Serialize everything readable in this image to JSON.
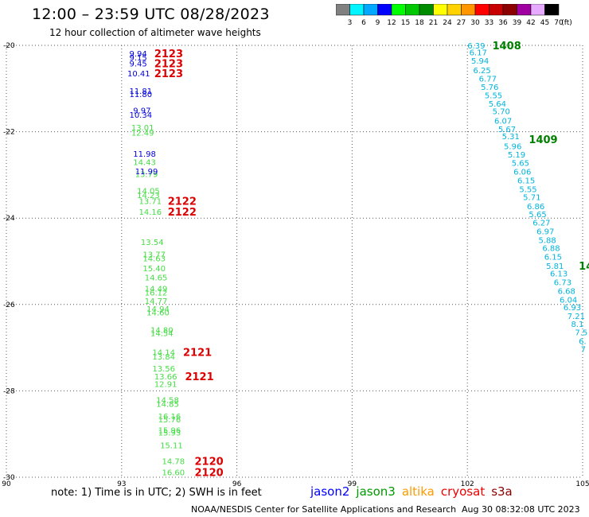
{
  "title": "12:00 – 23:59 UTC 08/28/2023",
  "subtitle": "12 hour collection of altimeter wave heights",
  "colorbar": {
    "unit": "(ft)",
    "bins": [
      {
        "label": "3",
        "color": "#808080"
      },
      {
        "label": "6",
        "color": "#00f5ff"
      },
      {
        "label": "9",
        "color": "#00a8ff"
      },
      {
        "label": "12",
        "color": "#0000ff"
      },
      {
        "label": "15",
        "color": "#00ff00"
      },
      {
        "label": "18",
        "color": "#00c800"
      },
      {
        "label": "21",
        "color": "#008c00"
      },
      {
        "label": "24",
        "color": "#ffff00"
      },
      {
        "label": "27",
        "color": "#ffd200"
      },
      {
        "label": "30",
        "color": "#ff9600"
      },
      {
        "label": "33",
        "color": "#ff0000"
      },
      {
        "label": "36",
        "color": "#c80000"
      },
      {
        "label": "39",
        "color": "#8c0000"
      },
      {
        "label": "42",
        "color": "#a000a0"
      },
      {
        "label": "45",
        "color": "#e6aaff"
      },
      {
        "label": "70",
        "color": "#000000"
      }
    ]
  },
  "map": {
    "lon_range": [
      90,
      105
    ],
    "lat_range": [
      -30,
      -20
    ],
    "x_ticks": [
      {
        "value": 90,
        "label": "90"
      },
      {
        "value": 93,
        "label": "93"
      },
      {
        "value": 96,
        "label": "96"
      },
      {
        "value": 99,
        "label": "99"
      },
      {
        "value": 102,
        "label": "102"
      },
      {
        "value": 105,
        "label": "105"
      }
    ],
    "y_ticks": [
      {
        "value": -20,
        "label": "-20"
      },
      {
        "value": -22,
        "label": "-22"
      },
      {
        "value": -24,
        "label": "-24"
      },
      {
        "value": -26,
        "label": "-26"
      },
      {
        "value": -28,
        "label": "-28"
      },
      {
        "value": -30,
        "label": "-30"
      }
    ],
    "grid": true
  },
  "observations": [
    {
      "lon": 93.2,
      "lat": -20.18,
      "value": "9.94",
      "sat": "jason2"
    },
    {
      "lon": 93.2,
      "lat": -20.28,
      "value": "9.15",
      "sat": "jason2"
    },
    {
      "lon": 93.2,
      "lat": -20.41,
      "value": "9.45",
      "sat": "jason2"
    },
    {
      "lon": 93.15,
      "lat": -20.64,
      "value": "10.41",
      "sat": "jason2"
    },
    {
      "lon": 93.2,
      "lat": -21.05,
      "value": "11.81",
      "sat": "jason2"
    },
    {
      "lon": 93.2,
      "lat": -21.12,
      "value": "11.80",
      "sat": "jason2"
    },
    {
      "lon": 93.3,
      "lat": -21.5,
      "value": "9.97",
      "sat": "jason2"
    },
    {
      "lon": 93.2,
      "lat": -21.6,
      "value": "10.34",
      "sat": "jason2"
    },
    {
      "lon": 93.25,
      "lat": -21.9,
      "value": "13.01",
      "sat": "jason3"
    },
    {
      "lon": 93.25,
      "lat": -22.02,
      "value": "12.49",
      "sat": "jason3"
    },
    {
      "lon": 93.3,
      "lat": -22.5,
      "value": "11.98",
      "sat": "jason2"
    },
    {
      "lon": 93.3,
      "lat": -22.7,
      "value": "14.43",
      "sat": "jason3"
    },
    {
      "lon": 93.35,
      "lat": -22.97,
      "value": "13.79",
      "sat": "jason3"
    },
    {
      "lon": 93.35,
      "lat": -22.91,
      "value": "11.99",
      "sat": "jason2"
    },
    {
      "lon": 93.4,
      "lat": -23.36,
      "value": "14.05",
      "sat": "jason3"
    },
    {
      "lon": 93.4,
      "lat": -23.46,
      "value": "14.23",
      "sat": "jason3"
    },
    {
      "lon": 93.45,
      "lat": -23.6,
      "value": "13.71",
      "sat": "jason3"
    },
    {
      "lon": 93.45,
      "lat": -23.85,
      "value": "14.16",
      "sat": "jason3"
    },
    {
      "lon": 93.5,
      "lat": -24.55,
      "value": "13.54",
      "sat": "jason3"
    },
    {
      "lon": 93.55,
      "lat": -24.83,
      "value": "13.77",
      "sat": "jason3"
    },
    {
      "lon": 93.55,
      "lat": -24.93,
      "value": "14.63",
      "sat": "jason3"
    },
    {
      "lon": 93.55,
      "lat": -25.16,
      "value": "15.40",
      "sat": "jason3"
    },
    {
      "lon": 93.6,
      "lat": -25.37,
      "value": "14.65",
      "sat": "jason3"
    },
    {
      "lon": 93.6,
      "lat": -25.63,
      "value": "14.49",
      "sat": "jason3"
    },
    {
      "lon": 93.6,
      "lat": -25.72,
      "value": "16.12",
      "sat": "jason3"
    },
    {
      "lon": 93.6,
      "lat": -25.91,
      "value": "14.77",
      "sat": "jason3"
    },
    {
      "lon": 93.65,
      "lat": -26.1,
      "value": "14.94",
      "sat": "jason3"
    },
    {
      "lon": 93.65,
      "lat": -26.18,
      "value": "14.60",
      "sat": "jason3"
    },
    {
      "lon": 93.75,
      "lat": -26.58,
      "value": "14.80",
      "sat": "jason3"
    },
    {
      "lon": 93.75,
      "lat": -26.66,
      "value": "14.54",
      "sat": "jason3"
    },
    {
      "lon": 93.8,
      "lat": -27.1,
      "value": "14.14",
      "sat": "jason3"
    },
    {
      "lon": 93.8,
      "lat": -27.2,
      "value": "13.84",
      "sat": "jason3"
    },
    {
      "lon": 93.8,
      "lat": -27.48,
      "value": "13.56",
      "sat": "jason3"
    },
    {
      "lon": 93.85,
      "lat": -27.66,
      "value": "13.66",
      "sat": "jason3"
    },
    {
      "lon": 93.85,
      "lat": -27.84,
      "value": "12.91",
      "sat": "jason3"
    },
    {
      "lon": 93.9,
      "lat": -28.2,
      "value": "14.58",
      "sat": "jason3"
    },
    {
      "lon": 93.9,
      "lat": -28.3,
      "value": "14.85",
      "sat": "jason3"
    },
    {
      "lon": 93.95,
      "lat": -28.58,
      "value": "16.16",
      "sat": "jason3"
    },
    {
      "lon": 93.95,
      "lat": -28.66,
      "value": "15.76",
      "sat": "jason3"
    },
    {
      "lon": 93.95,
      "lat": -28.9,
      "value": "15.96",
      "sat": "jason3"
    },
    {
      "lon": 93.95,
      "lat": -28.96,
      "value": "15.93",
      "sat": "jason3"
    },
    {
      "lon": 94.0,
      "lat": -29.25,
      "value": "15.11",
      "sat": "jason3"
    },
    {
      "lon": 94.05,
      "lat": -29.62,
      "value": "14.78",
      "sat": "jason3"
    },
    {
      "lon": 94.05,
      "lat": -29.88,
      "value": "16.60",
      "sat": "jason3"
    },
    {
      "lon": 102.0,
      "lat": -20.0,
      "value": "6.39",
      "sat": "s3a"
    },
    {
      "lon": 102.05,
      "lat": -20.16,
      "value": "6.17",
      "sat": "s3a"
    },
    {
      "lon": 102.1,
      "lat": -20.35,
      "value": "5.94",
      "sat": "s3a"
    },
    {
      "lon": 102.15,
      "lat": -20.57,
      "value": "6.25",
      "sat": "s3a"
    },
    {
      "lon": 102.3,
      "lat": -20.76,
      "value": "6.77",
      "sat": "s3a"
    },
    {
      "lon": 102.35,
      "lat": -20.96,
      "value": "5.76",
      "sat": "s3a"
    },
    {
      "lon": 102.45,
      "lat": -21.15,
      "value": "5.55",
      "sat": "s3a"
    },
    {
      "lon": 102.55,
      "lat": -21.34,
      "value": "5.64",
      "sat": "s3a"
    },
    {
      "lon": 102.65,
      "lat": -21.52,
      "value": "5.70",
      "sat": "s3a"
    },
    {
      "lon": 102.7,
      "lat": -21.74,
      "value": "6.07",
      "sat": "s3a"
    },
    {
      "lon": 102.8,
      "lat": -21.93,
      "value": "5.67",
      "sat": "s3a"
    },
    {
      "lon": 102.9,
      "lat": -22.1,
      "value": "5.31",
      "sat": "s3a"
    },
    {
      "lon": 102.95,
      "lat": -22.33,
      "value": "5.96",
      "sat": "s3a"
    },
    {
      "lon": 103.05,
      "lat": -22.52,
      "value": "5.19",
      "sat": "s3a"
    },
    {
      "lon": 103.15,
      "lat": -22.72,
      "value": "5.65",
      "sat": "s3a"
    },
    {
      "lon": 103.2,
      "lat": -22.92,
      "value": "6.06",
      "sat": "s3a"
    },
    {
      "lon": 103.3,
      "lat": -23.12,
      "value": "6.15",
      "sat": "s3a"
    },
    {
      "lon": 103.35,
      "lat": -23.32,
      "value": "5.55",
      "sat": "s3a"
    },
    {
      "lon": 103.45,
      "lat": -23.51,
      "value": "5.71",
      "sat": "s3a"
    },
    {
      "lon": 103.55,
      "lat": -23.72,
      "value": "6.86",
      "sat": "s3a"
    },
    {
      "lon": 103.6,
      "lat": -23.9,
      "value": "5.65",
      "sat": "s3a"
    },
    {
      "lon": 103.7,
      "lat": -24.1,
      "value": "6.27",
      "sat": "s3a"
    },
    {
      "lon": 103.8,
      "lat": -24.3,
      "value": "6.97",
      "sat": "s3a"
    },
    {
      "lon": 103.85,
      "lat": -24.5,
      "value": "5.88",
      "sat": "s3a"
    },
    {
      "lon": 103.95,
      "lat": -24.69,
      "value": "6.88",
      "sat": "s3a"
    },
    {
      "lon": 104.0,
      "lat": -24.89,
      "value": "6.15",
      "sat": "s3a"
    },
    {
      "lon": 104.05,
      "lat": -25.1,
      "value": "5.81",
      "sat": "s3a"
    },
    {
      "lon": 104.15,
      "lat": -25.28,
      "value": "6.13",
      "sat": "s3a"
    },
    {
      "lon": 104.25,
      "lat": -25.48,
      "value": "6.73",
      "sat": "s3a"
    },
    {
      "lon": 104.35,
      "lat": -25.68,
      "value": "6.68",
      "sat": "s3a"
    },
    {
      "lon": 104.4,
      "lat": -25.88,
      "value": "6.04",
      "sat": "s3a"
    },
    {
      "lon": 104.5,
      "lat": -26.06,
      "value": "6.93",
      "sat": "s3a"
    },
    {
      "lon": 104.6,
      "lat": -26.26,
      "value": "7.21",
      "sat": "s3a"
    },
    {
      "lon": 104.7,
      "lat": -26.45,
      "value": "8.1",
      "sat": "s3a"
    },
    {
      "lon": 104.8,
      "lat": -26.64,
      "value": "7.5",
      "sat": "s3a"
    },
    {
      "lon": 104.9,
      "lat": -26.84,
      "value": "6.",
      "sat": "s3a"
    },
    {
      "lon": 104.95,
      "lat": -27.03,
      "value": "7",
      "sat": "s3a"
    }
  ],
  "time_labels": [
    {
      "lon": 93.85,
      "lat": -20.18,
      "text": "2123",
      "color": "#dd0000"
    },
    {
      "lon": 93.85,
      "lat": -20.41,
      "text": "2123",
      "color": "#dd0000"
    },
    {
      "lon": 93.85,
      "lat": -20.64,
      "text": "2123",
      "color": "#dd0000"
    },
    {
      "lon": 94.2,
      "lat": -23.6,
      "text": "2122",
      "color": "#dd0000"
    },
    {
      "lon": 94.2,
      "lat": -23.85,
      "text": "2122",
      "color": "#dd0000"
    },
    {
      "lon": 94.6,
      "lat": -27.1,
      "text": "2121",
      "color": "#dd0000"
    },
    {
      "lon": 94.65,
      "lat": -27.66,
      "text": "2121",
      "color": "#dd0000"
    },
    {
      "lon": 94.9,
      "lat": -29.62,
      "text": "2120",
      "color": "#dd0000"
    },
    {
      "lon": 94.9,
      "lat": -29.88,
      "text": "2120",
      "color": "#dd0000"
    },
    {
      "lon": 102.65,
      "lat": -20.0,
      "text": "1408",
      "color": "#008000"
    },
    {
      "lon": 103.6,
      "lat": -22.17,
      "text": "1409",
      "color": "#008000"
    },
    {
      "lon": 104.9,
      "lat": -25.1,
      "text": "14",
      "color": "#008000"
    }
  ],
  "satellite_colors": {
    "jason2": "#0000dd",
    "jason3": "#44dd44",
    "s3a": "#00b4dc"
  },
  "note": "note: 1) Time is in UTC; 2) SWH is in feet",
  "legend": [
    {
      "name": "jason2",
      "color": "#0000ff"
    },
    {
      "name": "jason3",
      "color": "#009900"
    },
    {
      "name": "altika",
      "color": "#ff9900"
    },
    {
      "name": "cryosat",
      "color": "#ee0000"
    },
    {
      "name": "s3a",
      "color": "#8b0000"
    }
  ],
  "credit": "NOAA/NESDIS Center for Satellite Applications and Research",
  "timestamp": "Aug 30 08:32:08 UTC 2023"
}
